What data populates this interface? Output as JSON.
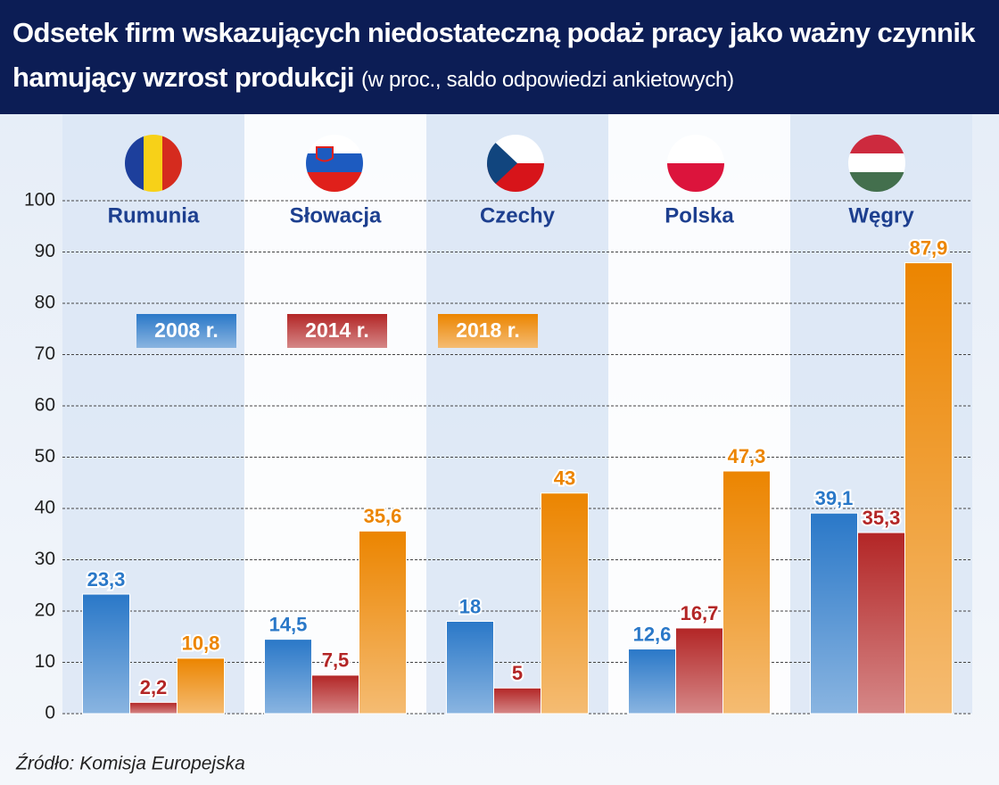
{
  "chart_data": {
    "type": "bar",
    "title": "Odsetek firm wskazujących niedostateczną podaż pracy jako ważny czynnik hamujący wzrost produkcji",
    "subtitle": "(w proc., saldo odpowiedzi ankietowych)",
    "source": "Źródło: Komisja Europejska",
    "categories": [
      "Rumunia",
      "Słowacja",
      "Czechy",
      "Polska",
      "Węgry"
    ],
    "series": [
      {
        "name": "2008 r.",
        "color": "#2a78c8",
        "values": [
          23.3,
          14.5,
          18,
          12.6,
          39.1
        ],
        "value_labels": [
          "23,3",
          "14,5",
          "18",
          "12,6",
          "39,1"
        ]
      },
      {
        "name": "2014 r.",
        "color": "#b32626",
        "values": [
          2.2,
          7.5,
          5,
          16.7,
          35.3
        ],
        "value_labels": [
          "2,2",
          "7,5",
          "5",
          "16,7",
          "35,3"
        ]
      },
      {
        "name": "2018 r.",
        "color": "#ec8500",
        "values": [
          10.8,
          35.6,
          43,
          47.3,
          87.9
        ],
        "value_labels": [
          "10,8",
          "35,6",
          "43",
          "47,3",
          "87,9"
        ]
      }
    ],
    "ylim": [
      0,
      100
    ],
    "yticks": [
      0,
      10,
      20,
      30,
      40,
      50,
      60,
      70,
      80,
      90,
      100
    ],
    "grid": true
  }
}
